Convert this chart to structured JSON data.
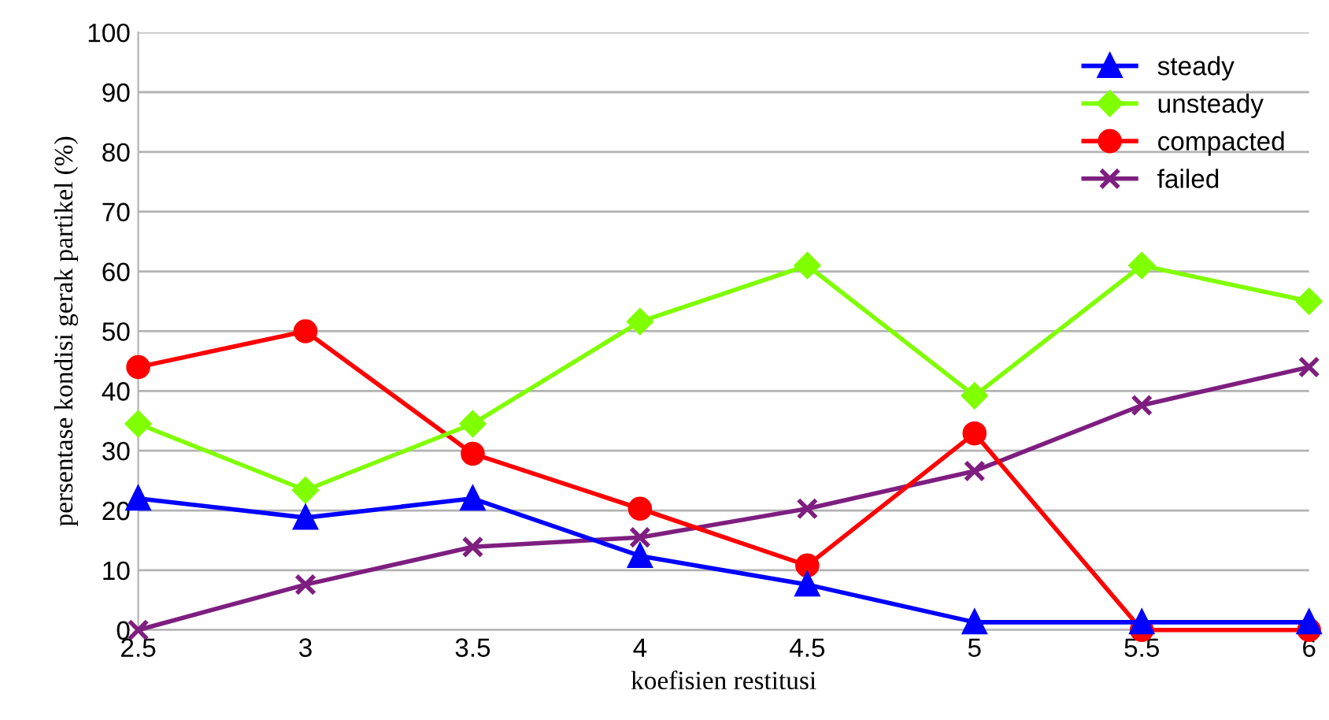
{
  "chart_data": {
    "type": "line",
    "xlabel": "koefisien restitusi",
    "ylabel": "persentase kondisi gerak partikel (%)",
    "x": [
      2.5,
      3,
      3.5,
      4,
      4.5,
      5,
      5.5,
      6
    ],
    "series": [
      {
        "name": "steady",
        "color": "#0000ff",
        "marker": "triangle",
        "values": [
          22,
          18.8,
          22,
          12.4,
          7.6,
          1.3,
          1.3,
          1.3
        ]
      },
      {
        "name": "unsteady",
        "color": "#80ff00",
        "marker": "diamond",
        "values": [
          34.5,
          23.4,
          34.5,
          51.6,
          61,
          39.2,
          61,
          55
        ]
      },
      {
        "name": "compacted",
        "color": "#ff0000",
        "marker": "circle",
        "values": [
          44,
          50,
          29.5,
          20.3,
          10.8,
          32.9,
          0,
          0
        ]
      },
      {
        "name": "failed",
        "color": "#7e1e80",
        "marker": "cross",
        "values": [
          0,
          7.6,
          13.9,
          15.5,
          20.3,
          26.6,
          37.6,
          44
        ]
      }
    ],
    "xlim": [
      2.5,
      6
    ],
    "xticks": [
      2.5,
      3,
      3.5,
      4,
      4.5,
      5,
      5.5,
      6
    ],
    "ylim": [
      0,
      100
    ],
    "yticks": [
      0,
      10,
      20,
      30,
      40,
      50,
      60,
      70,
      80,
      90,
      100
    ],
    "grid": "y",
    "legend": "top right",
    "line_style": "solid"
  }
}
